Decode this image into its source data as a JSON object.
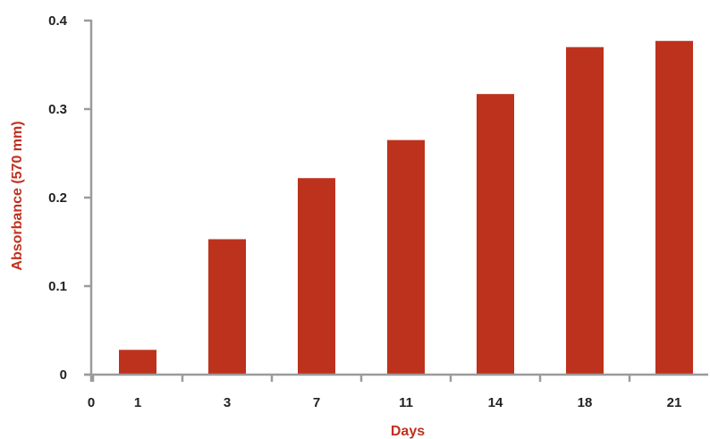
{
  "colors": {
    "bar": "#bd321d",
    "axis": "#9b9b9b",
    "axis_title": "#c0301f",
    "tick_text": "#222222"
  },
  "chart_data": {
    "type": "bar",
    "categories": [
      "1",
      "3",
      "7",
      "11",
      "14",
      "18",
      "21"
    ],
    "values": [
      0.028,
      0.153,
      0.222,
      0.265,
      0.317,
      0.37,
      0.377
    ],
    "xlabel": "Days",
    "ylabel": "Absorbance (570 mm)",
    "x_origin_label": "0",
    "ylim": [
      0,
      0.4
    ],
    "yticks": [
      0,
      0.1,
      0.2,
      0.3,
      0.4
    ],
    "ytick_labels": [
      "0",
      "0.1",
      "0.2",
      "0.3",
      "0.4"
    ],
    "grid": false,
    "legend": "none"
  }
}
